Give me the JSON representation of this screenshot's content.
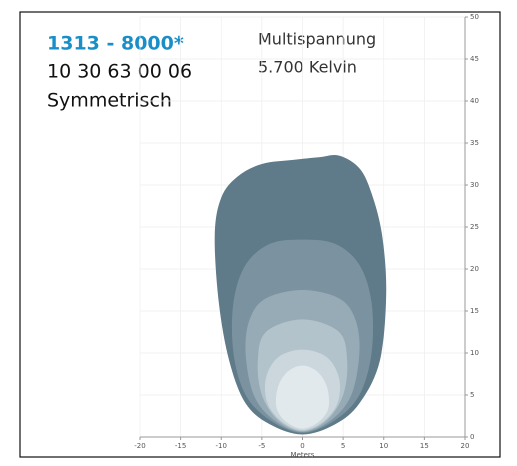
{
  "header": {
    "title": "1313 - 8000*",
    "code": "10 30 63 00 06",
    "pattern": "Symmetrisch",
    "voltage": "Multispannung",
    "temperature": "5.700 Kelvin"
  },
  "chart_data": {
    "type": "contour",
    "xlabel": "Meters",
    "xlim": [
      -20,
      20
    ],
    "ylim": [
      0,
      50
    ],
    "xticks": [
      -20,
      -15,
      -10,
      -5,
      0,
      5,
      10,
      15,
      20
    ],
    "yticks": [
      0,
      5,
      10,
      15,
      20,
      25,
      30,
      35,
      40,
      45,
      50
    ],
    "grid": true,
    "series": [
      {
        "color": "#5f7a88",
        "x": [
          0,
          -4,
          -7,
          -9,
          -10.3,
          -10.8,
          -10,
          -8,
          -5,
          -1,
          2,
          4.5,
          7,
          8.5,
          9.8,
          10.3,
          9.5,
          7,
          4
        ],
        "y": [
          0.3,
          1.5,
          4,
          9,
          16,
          24,
          28.5,
          31,
          32.5,
          33,
          33.3,
          33.5,
          32,
          29,
          24,
          17,
          9,
          4,
          1.5
        ]
      },
      {
        "color": "#7b93a0",
        "x": [
          0,
          -4,
          -7,
          -8.5,
          -8.5,
          -7,
          -4,
          0,
          4,
          7,
          8.5,
          8.5,
          7,
          4
        ],
        "y": [
          0.5,
          2,
          5,
          10,
          16,
          20.5,
          23,
          23.5,
          23,
          20.5,
          16,
          10,
          5,
          2
        ]
      },
      {
        "color": "#97abb6",
        "x": [
          0,
          -3.5,
          -6,
          -7,
          -6.5,
          -4.5,
          0,
          4.5,
          6.5,
          7,
          6,
          3.5
        ],
        "y": [
          0.6,
          2,
          5,
          10,
          14,
          16.5,
          17.5,
          16.5,
          14,
          10,
          5,
          2
        ]
      },
      {
        "color": "#b2c3cb",
        "x": [
          0,
          -3,
          -5,
          -5.5,
          -4.5,
          0,
          4.5,
          5.5,
          5,
          3
        ],
        "y": [
          0.7,
          2,
          5,
          9,
          12.5,
          14,
          12.5,
          9,
          5,
          2
        ]
      },
      {
        "color": "#cbd7dd",
        "x": [
          0,
          -2.5,
          -4.3,
          -4.5,
          -3,
          0,
          3,
          4.5,
          4.3,
          2.5
        ],
        "y": [
          0.8,
          1.8,
          4,
          7,
          9.5,
          10.4,
          9.5,
          7,
          4,
          1.8
        ]
      },
      {
        "color": "#e2e9ed",
        "x": [
          0,
          -2,
          -3.2,
          -3,
          -1.8,
          0,
          1.8,
          3,
          3.2,
          2
        ],
        "y": [
          1,
          1.8,
          3.5,
          6,
          7.8,
          8.5,
          7.8,
          6,
          3.5,
          1.8
        ]
      }
    ]
  }
}
